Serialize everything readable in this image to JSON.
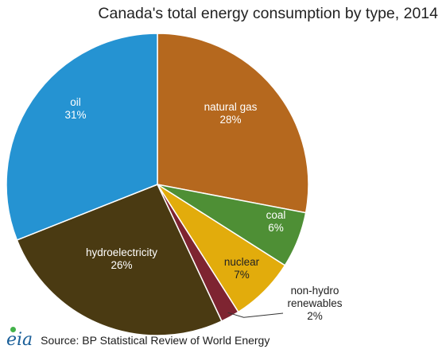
{
  "title": "Canada's total energy consumption by type, 2014",
  "source": "Source:  BP Statistical Review  of World Energy",
  "logo_text": "eia",
  "colors": {
    "oil": "#2593d2",
    "natural_gas": "#b5681e",
    "coal": "#4e8f35",
    "nuclear": "#e2ac0c",
    "non_hydro_renewables": "#7e2431",
    "hydroelectricity": "#4a3a12",
    "stroke": "#ffffff",
    "leader": "#333333",
    "logo": "#1a5f99",
    "logo_dot": "#43b24a"
  },
  "chart_data": {
    "type": "pie",
    "title": "Canada's total energy consumption by type, 2014",
    "slices": [
      {
        "key": "natural_gas",
        "label": "natural gas",
        "value": 28,
        "value_label": "28%"
      },
      {
        "key": "coal",
        "label": "coal",
        "value": 6,
        "value_label": "6%"
      },
      {
        "key": "nuclear",
        "label": "nuclear",
        "value": 7,
        "value_label": "7%"
      },
      {
        "key": "non_hydro_renewables",
        "label": "non-hydro renewables",
        "label_lines": [
          "non-hydro",
          "renewables"
        ],
        "value": 2,
        "value_label": "2%"
      },
      {
        "key": "hydroelectricity",
        "label": "hydroelectricity",
        "value": 26,
        "value_label": "26%"
      },
      {
        "key": "oil",
        "label": "oil",
        "value": 31,
        "value_label": "31%"
      }
    ]
  }
}
